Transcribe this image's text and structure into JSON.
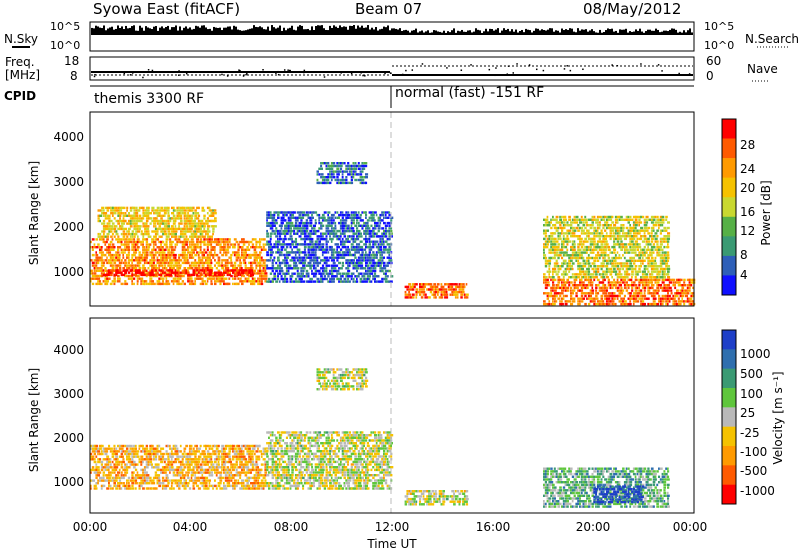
{
  "header": {
    "radar": "Syowa East (fitACF)",
    "beam": "Beam 07",
    "date": "08/May/2012"
  },
  "top_panels": {
    "nsky_label": "N.Sky",
    "nsky_ticks": [
      "10^5",
      "10^0"
    ],
    "nsearch_label": "N.Search",
    "nsearch_ticks": [
      "10^5",
      "10^0"
    ],
    "freq_label_1": "Freq.",
    "freq_label_2": "[MHz]",
    "freq_ticks": [
      "18",
      "8"
    ],
    "nave_label": "Nave",
    "nave_ticks": [
      "60",
      "0"
    ],
    "cpid_label": "CPID",
    "cpid_1": "themis 3300 RF",
    "cpid_2": "normal (fast) -151 RF"
  },
  "colorbars": {
    "power": {
      "label": "Power [dB]",
      "ticks": [
        "28",
        "24",
        "20",
        "16",
        "12",
        "8",
        "4"
      ],
      "colors": [
        "#ff0000",
        "#ff5a00",
        "#ff9a00",
        "#f5c200",
        "#c9d830",
        "#56b046",
        "#3a9a73",
        "#2e5fb8",
        "#1010ff"
      ]
    },
    "velocity": {
      "label": "Velocity [m s⁻¹]",
      "ticks": [
        "1000",
        "500",
        "100",
        "25",
        "-25",
        "-100",
        "-500",
        "-1000"
      ],
      "colors": [
        "#1e3fc8",
        "#2f6fae",
        "#3a9a73",
        "#5fc63c",
        "#b9b9b9",
        "#f5c200",
        "#ff9a00",
        "#ff5a00",
        "#ff0000"
      ]
    }
  },
  "axes": {
    "ylabel": "Slant Range [km]",
    "yticks": [
      "4000",
      "3000",
      "2000",
      "1000"
    ],
    "xticks": [
      "00:00",
      "04:00",
      "08:00",
      "12:00",
      "16:00",
      "20:00",
      "00:00"
    ],
    "xlabel": "Time UT"
  },
  "chart_data": [
    {
      "type": "heatmap",
      "title": "Power",
      "xlabel": "Time UT",
      "ylabel": "Slant Range [km]",
      "xlim": [
        0,
        24
      ],
      "ylim": [
        180,
        4500
      ],
      "colorbar": {
        "label": "Power [dB]",
        "range": [
          0,
          30
        ]
      },
      "regions": [
        {
          "t": [
            0,
            7
          ],
          "range": [
            650,
            1700
          ],
          "value": 22
        },
        {
          "t": [
            0.5,
            6.5
          ],
          "range": [
            850,
            1000
          ],
          "value": 30
        },
        {
          "t": [
            0.3,
            5
          ],
          "range": [
            1700,
            2400
          ],
          "value": 18
        },
        {
          "t": [
            7,
            12
          ],
          "range": [
            700,
            2300
          ],
          "value": 5
        },
        {
          "t": [
            9,
            11
          ],
          "range": [
            2900,
            3400
          ],
          "value": 6
        },
        {
          "t": [
            12.5,
            15
          ],
          "range": [
            350,
            700
          ],
          "value": 24
        },
        {
          "t": [
            18,
            24
          ],
          "range": [
            200,
            800
          ],
          "value": 24
        },
        {
          "t": [
            18,
            23
          ],
          "range": [
            800,
            2200
          ],
          "value": 16
        }
      ]
    },
    {
      "type": "heatmap",
      "title": "Velocity",
      "xlabel": "Time UT",
      "ylabel": "Slant Range [km]",
      "xlim": [
        0,
        24
      ],
      "ylim": [
        180,
        4500
      ],
      "colorbar": {
        "label": "Velocity [m s⁻¹]",
        "range": [
          -1000,
          1000
        ]
      },
      "regions": [
        {
          "t": [
            0,
            7
          ],
          "range": [
            700,
            1700
          ],
          "value": -300
        },
        {
          "t": [
            7,
            12
          ],
          "range": [
            700,
            2000
          ],
          "value": 0
        },
        {
          "t": [
            9,
            11
          ],
          "range": [
            2900,
            3400
          ],
          "value": 0
        },
        {
          "t": [
            12.5,
            15
          ],
          "range": [
            350,
            700
          ],
          "value": 0
        },
        {
          "t": [
            18,
            23
          ],
          "range": [
            300,
            1200
          ],
          "value": 300
        },
        {
          "t": [
            20,
            22
          ],
          "range": [
            400,
            800
          ],
          "value": 900
        }
      ]
    }
  ]
}
